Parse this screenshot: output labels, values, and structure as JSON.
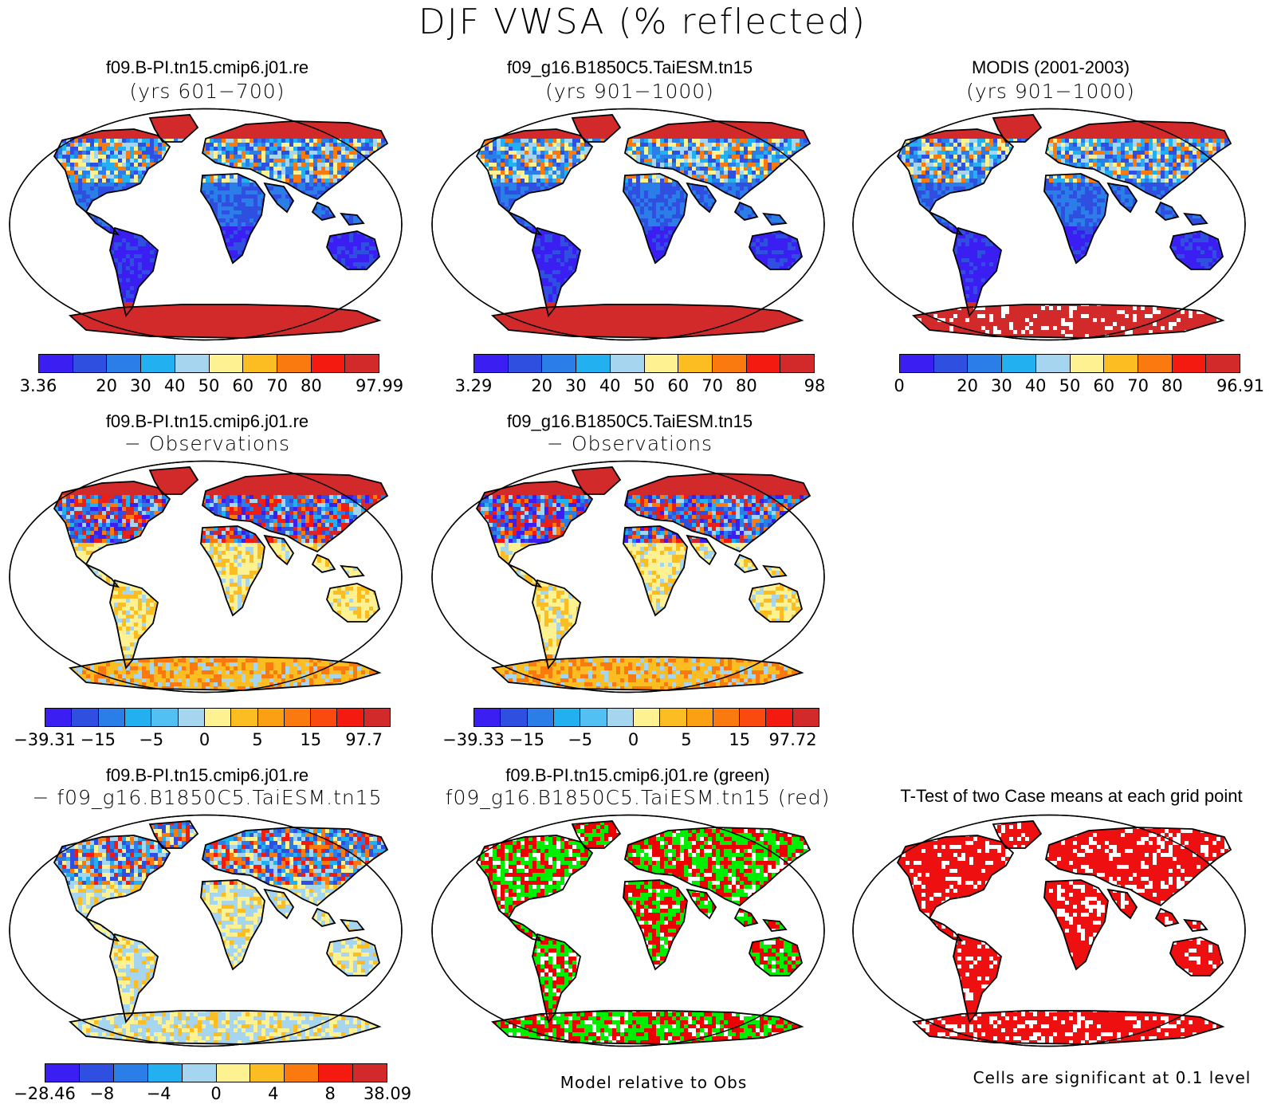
{
  "figure_title": "DJF VWSA (% reflected)",
  "palettes": {
    "abs": [
      "#3a1ef2",
      "#2f4fe0",
      "#2b7ee8",
      "#22b0f0",
      "#a6d6ef",
      "#fdf191",
      "#fbbd21",
      "#fb7a10",
      "#f51a10",
      "#d22a2a"
    ],
    "diff": [
      "#3a1ef2",
      "#2f4fe0",
      "#2b7ee8",
      "#22b0f0",
      "#52c0f3",
      "#a6d6ef",
      "#fdf191",
      "#fbbd21",
      "#fba012",
      "#fb7a10",
      "#fb4a10",
      "#f51a10",
      "#d22a2a"
    ]
  },
  "panels": [
    {
      "id": "p1",
      "title": "f09.B-PI.tn15.cmip6.j01.re",
      "subtitle": "(yrs 601−700)",
      "style": "abs"
    },
    {
      "id": "p2",
      "title": "f09_g16.B1850C5.TaiESM.tn15",
      "subtitle": "(yrs 901−1000)",
      "style": "abs"
    },
    {
      "id": "p3",
      "title": "MODIS (2001-2003)",
      "subtitle": "(yrs 901−1000)",
      "style": "abs"
    },
    {
      "id": "p4",
      "title": "f09.B-PI.tn15.cmip6.j01.re",
      "subtitle": "− Observations",
      "style": "diff"
    },
    {
      "id": "p5",
      "title": "f09_g16.B1850C5.TaiESM.tn15",
      "subtitle": "− Observations",
      "style": "diff"
    },
    {
      "id": "p6",
      "title": "f09.B-PI.tn15.cmip6.j01.re",
      "subtitle": "− f09_g16.B1850C5.TaiESM.tn15",
      "style": "diffsmall"
    },
    {
      "id": "p7",
      "title": "f09.B-PI.tn15.cmip6.j01.re (green)",
      "subtitle": "f09_g16.B1850C5.TaiESM.tn15 (red)",
      "style": "greenred"
    },
    {
      "id": "p8",
      "title": "T-Test of two Case means at each grid point",
      "subtitle": "",
      "style": "ttest"
    }
  ],
  "colorbars": [
    {
      "id": "cb1",
      "labels": [
        "3.36",
        "20",
        "30",
        "40",
        "50",
        "60",
        "70",
        "80",
        "97.99"
      ],
      "positions": [
        0,
        0.2,
        0.3,
        0.4,
        0.5,
        0.6,
        0.7,
        0.8,
        1.0
      ]
    },
    {
      "id": "cb2",
      "labels": [
        "3.29",
        "20",
        "30",
        "40",
        "50",
        "60",
        "70",
        "80",
        "98"
      ],
      "positions": [
        0,
        0.2,
        0.3,
        0.4,
        0.5,
        0.6,
        0.7,
        0.8,
        1.0
      ]
    },
    {
      "id": "cb3",
      "labels": [
        "0",
        "20",
        "30",
        "40",
        "50",
        "60",
        "70",
        "80",
        "96.91"
      ],
      "positions": [
        0,
        0.2,
        0.3,
        0.4,
        0.5,
        0.6,
        0.7,
        0.8,
        1.0
      ]
    },
    {
      "id": "cb4",
      "labels": [
        "−39.31",
        "−15",
        "−5",
        "0",
        "5",
        "15",
        "97.7"
      ],
      "positions": [
        0,
        0.154,
        0.308,
        0.462,
        0.615,
        0.769,
        0.923
      ]
    },
    {
      "id": "cb5",
      "labels": [
        "−39.33",
        "−15",
        "−5",
        "0",
        "5",
        "15",
        "97.72"
      ],
      "positions": [
        0,
        0.154,
        0.308,
        0.462,
        0.615,
        0.769,
        0.923
      ]
    },
    {
      "id": "cb6",
      "labels": [
        "−28.46",
        "−8",
        "−4",
        "0",
        "4",
        "8",
        "38.09"
      ],
      "positions": [
        0,
        0.167,
        0.333,
        0.5,
        0.667,
        0.833,
        1.0
      ]
    }
  ],
  "notes": {
    "model_relative": "Model relative to Obs",
    "significance": "Cells are significant at 0.1 level"
  }
}
